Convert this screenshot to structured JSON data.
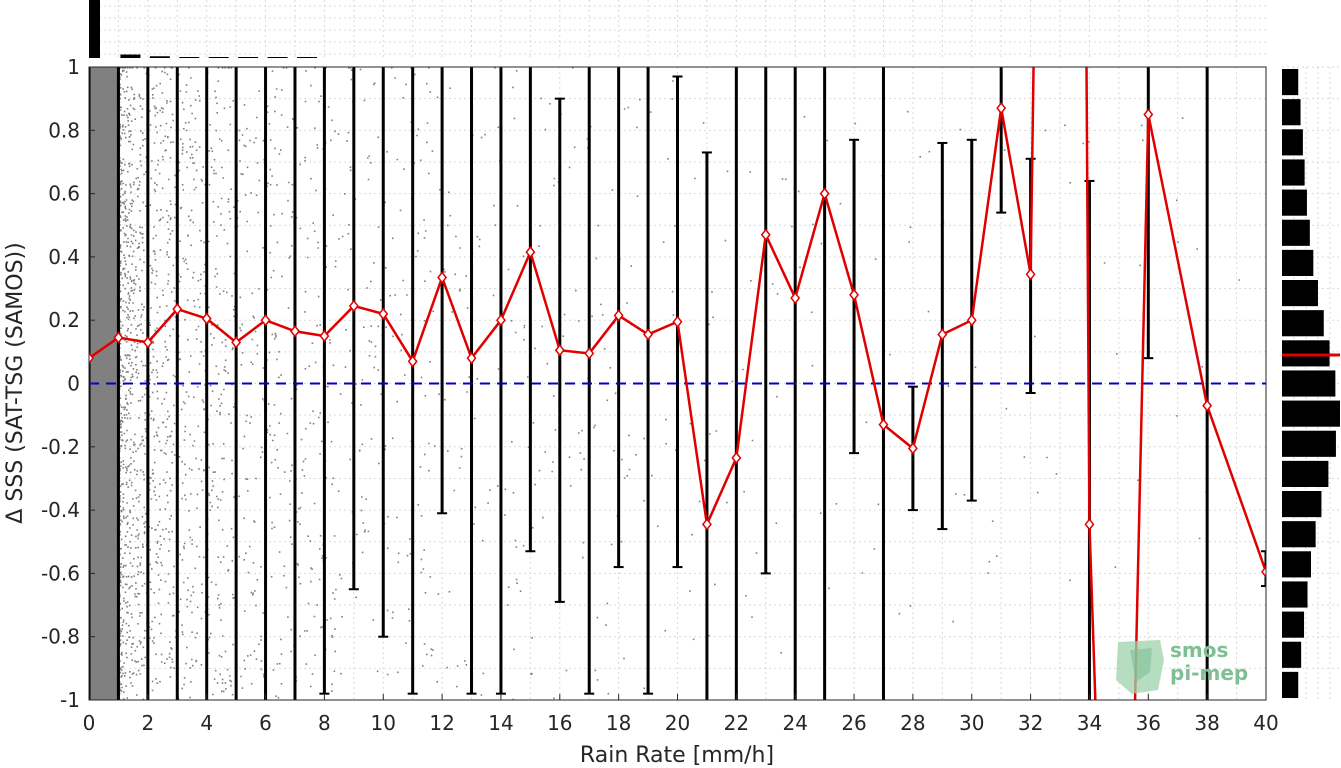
{
  "chart_data": {
    "type": "scatter",
    "xlabel": "Rain Rate [mm/h]",
    "ylabel": "Δ SSS (SAT-TSG (SAMOS))",
    "xlim": [
      0,
      40
    ],
    "ylim": [
      -1,
      1
    ],
    "x_ticks": [
      "0",
      "2",
      "4",
      "6",
      "8",
      "10",
      "12",
      "14",
      "16",
      "18",
      "20",
      "22",
      "24",
      "26",
      "28",
      "30",
      "32",
      "34",
      "36",
      "38",
      "40"
    ],
    "y_ticks": [
      "1",
      "0.8",
      "0.6",
      "0.4",
      "0.2",
      "0",
      "-0.2",
      "-0.4",
      "-0.6",
      "-0.8",
      "-1"
    ],
    "grid": true,
    "reference_line": {
      "y": 0,
      "color": "#0000cc",
      "style": "dashed"
    },
    "mean_series": {
      "color": "#e00000",
      "marker": "diamond",
      "points": [
        [
          0,
          0.08
        ],
        [
          1,
          0.145
        ],
        [
          2,
          0.13
        ],
        [
          3,
          0.235
        ],
        [
          4,
          0.205
        ],
        [
          5,
          0.13
        ],
        [
          6,
          0.2
        ],
        [
          7,
          0.165
        ],
        [
          8,
          0.15
        ],
        [
          9,
          0.245
        ],
        [
          10,
          0.22
        ],
        [
          11,
          0.07
        ],
        [
          12,
          0.335
        ],
        [
          13,
          0.08
        ],
        [
          14,
          0.2
        ],
        [
          15,
          0.415
        ],
        [
          16,
          0.105
        ],
        [
          17,
          0.095
        ],
        [
          18,
          0.215
        ],
        [
          19,
          0.155
        ],
        [
          20,
          0.195
        ],
        [
          21,
          -0.445
        ],
        [
          22,
          -0.235
        ],
        [
          23,
          0.47
        ],
        [
          24,
          0.27
        ],
        [
          25,
          0.6
        ],
        [
          26,
          0.28
        ],
        [
          27,
          -0.13
        ],
        [
          28,
          -0.205
        ],
        [
          29,
          0.155
        ],
        [
          30,
          0.2
        ],
        [
          31,
          0.87
        ],
        [
          32,
          0.345
        ],
        [
          34,
          -0.445
        ],
        [
          36,
          0.85
        ],
        [
          38,
          -0.07
        ],
        [
          40,
          -0.595
        ]
      ]
    },
    "off_scale_segments": [
      [
        [
          32,
          0.345
        ],
        [
          32.1,
          1.0
        ]
      ],
      [
        [
          33.9,
          1.0
        ],
        [
          34,
          -0.445
        ],
        [
          34.2,
          -1.0
        ]
      ],
      [
        [
          35.55,
          -1.0
        ],
        [
          36,
          0.85
        ]
      ]
    ],
    "error_bars": [
      [
        0,
        -1,
        1
      ],
      [
        1,
        -1,
        1
      ],
      [
        2,
        -1,
        1
      ],
      [
        3,
        -1,
        1
      ],
      [
        4,
        -1,
        1
      ],
      [
        5,
        -1,
        1
      ],
      [
        6,
        -1,
        1
      ],
      [
        7,
        -1,
        1
      ],
      [
        8,
        -0.98,
        1
      ],
      [
        9,
        -0.65,
        1
      ],
      [
        10,
        -0.8,
        1
      ],
      [
        11,
        -0.98,
        1
      ],
      [
        12,
        -0.41,
        1
      ],
      [
        13,
        -0.98,
        1
      ],
      [
        14,
        -0.98,
        1
      ],
      [
        15,
        -0.53,
        1
      ],
      [
        16,
        -0.69,
        0.9
      ],
      [
        17,
        -0.98,
        1
      ],
      [
        18,
        -0.58,
        1
      ],
      [
        19,
        -0.98,
        1
      ],
      [
        20,
        -0.58,
        0.97
      ],
      [
        21,
        -1,
        0.73
      ],
      [
        22,
        -1,
        1
      ],
      [
        23,
        -0.6,
        1
      ],
      [
        24,
        -1,
        1
      ],
      [
        25,
        -1,
        1
      ],
      [
        26,
        -0.22,
        0.77
      ],
      [
        27,
        -1,
        1
      ],
      [
        28,
        -0.4,
        -0.01
      ],
      [
        29,
        -0.46,
        0.76
      ],
      [
        30,
        -0.37,
        0.77
      ],
      [
        31,
        0.54,
        1
      ],
      [
        32,
        -0.03,
        0.71
      ],
      [
        34,
        -1,
        0.64
      ],
      [
        36,
        0.08,
        1
      ],
      [
        38,
        -1,
        1
      ],
      [
        40,
        -0.64,
        -0.53
      ]
    ],
    "top_histogram": {
      "bin_width": 1,
      "relative_counts": [
        1.0,
        0.06,
        0.03,
        0.015,
        0.008,
        0.005,
        0.003,
        0.002
      ]
    },
    "right_histogram": {
      "bin_width": 0.1,
      "bins_from_top": [
        0.28,
        0.32,
        0.36,
        0.39,
        0.43,
        0.48,
        0.54,
        0.62,
        0.72,
        0.82,
        0.92,
        1.0,
        0.93,
        0.8,
        0.68,
        0.58,
        0.5,
        0.44,
        0.38,
        0.33,
        0.28
      ],
      "mean_marker": {
        "y": 0.09,
        "color": "#e00000"
      }
    },
    "scatter_color": "#808080"
  },
  "logo": {
    "line1": "smos",
    "line2": "pi-mep"
  }
}
